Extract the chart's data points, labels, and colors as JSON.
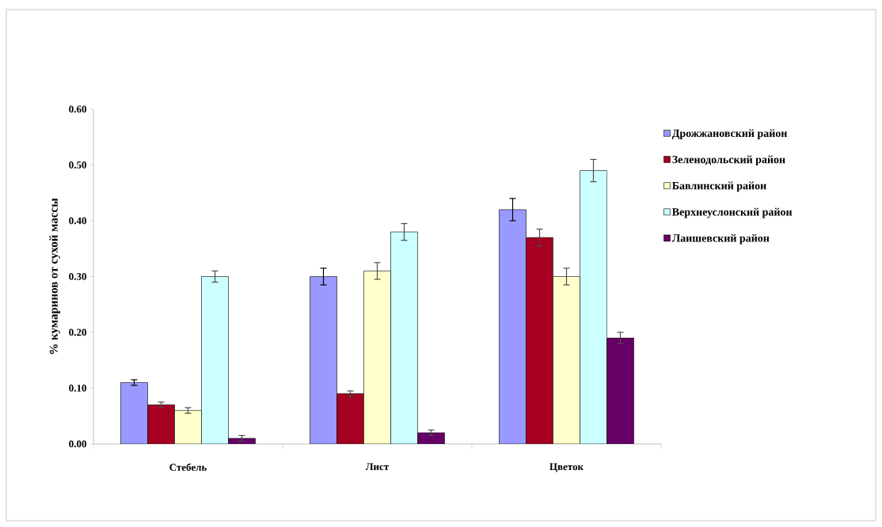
{
  "chart_data": {
    "type": "bar",
    "ylabel": "% кумаринов от сухой массы",
    "categories": [
      "Стебель",
      "Лист",
      "Цветок"
    ],
    "series": [
      {
        "name": "Дрожжановский район",
        "color": "#9999ff",
        "values": [
          0.11,
          0.3,
          0.42
        ],
        "errors": [
          0.005,
          0.015,
          0.02
        ]
      },
      {
        "name": "Зеленодольский район",
        "color": "#a50021",
        "values": [
          0.07,
          0.09,
          0.37
        ],
        "errors": [
          0.005,
          0.005,
          0.015
        ]
      },
      {
        "name": "Бавлинский район",
        "color": "#ffffcc",
        "values": [
          0.06,
          0.31,
          0.3
        ],
        "errors": [
          0.005,
          0.015,
          0.015
        ]
      },
      {
        "name": "Верхнеуслонский район",
        "color": "#ccffff",
        "values": [
          0.3,
          0.38,
          0.49
        ],
        "errors": [
          0.01,
          0.015,
          0.02
        ]
      },
      {
        "name": "Лаишевский район",
        "color": "#660066",
        "values": [
          0.01,
          0.02,
          0.19
        ],
        "errors": [
          0.005,
          0.005,
          0.01
        ]
      }
    ],
    "ylim": [
      0,
      0.6
    ],
    "yticks": [
      {
        "value": 0,
        "label": "0.00"
      },
      {
        "value": 0.1,
        "label": "0.10"
      },
      {
        "value": 0.2,
        "label": "0.20"
      },
      {
        "value": 0.3,
        "label": "0.30"
      },
      {
        "value": 0.4,
        "label": "0.40"
      },
      {
        "value": 0.5,
        "label": "0.50"
      },
      {
        "value": 0.6,
        "label": "0.60"
      }
    ],
    "grid": false,
    "legend": "right"
  }
}
